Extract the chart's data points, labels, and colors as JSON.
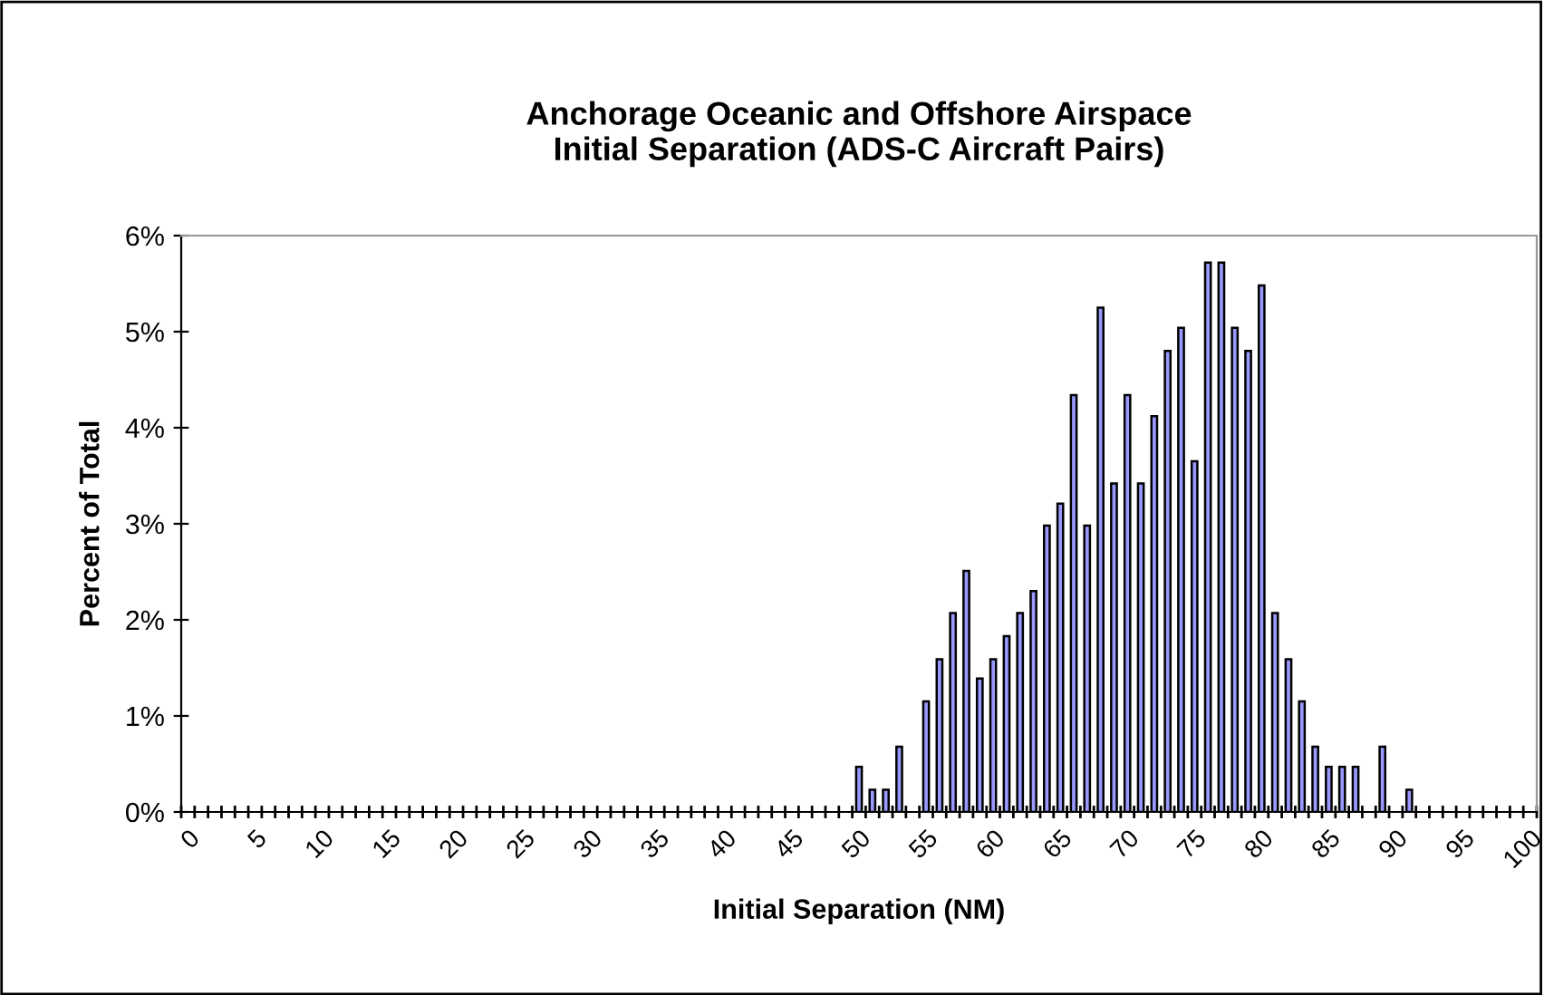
{
  "chart_data": {
    "type": "bar",
    "title": "Anchorage Oceanic and Offshore Airspace\nInitial Separation (ADS-C Aircraft Pairs)",
    "xlabel": "Initial Separation (NM)",
    "ylabel": "Percent of Total",
    "categories": [
      "0",
      null,
      null,
      null,
      null,
      "5",
      null,
      null,
      null,
      null,
      "10",
      null,
      null,
      null,
      null,
      "15",
      null,
      null,
      null,
      null,
      "20",
      null,
      null,
      null,
      null,
      "25",
      null,
      null,
      null,
      null,
      "30",
      null,
      null,
      null,
      null,
      "35",
      null,
      null,
      null,
      null,
      "40",
      null,
      null,
      null,
      null,
      "45",
      null,
      null,
      null,
      null,
      "50",
      null,
      null,
      null,
      null,
      "55",
      null,
      null,
      null,
      null,
      "60",
      null,
      null,
      null,
      null,
      "65",
      null,
      null,
      null,
      null,
      "70",
      null,
      null,
      null,
      null,
      "75",
      null,
      null,
      null,
      null,
      "80",
      null,
      null,
      null,
      null,
      "85",
      null,
      null,
      null,
      null,
      "90",
      null,
      null,
      null,
      null,
      "95",
      null,
      null,
      null,
      null,
      "100"
    ],
    "values": [
      null,
      null,
      null,
      null,
      null,
      null,
      null,
      null,
      null,
      null,
      null,
      null,
      null,
      null,
      null,
      null,
      null,
      null,
      null,
      null,
      null,
      null,
      null,
      null,
      null,
      null,
      null,
      null,
      null,
      null,
      null,
      null,
      null,
      null,
      null,
      null,
      null,
      null,
      null,
      null,
      null,
      null,
      null,
      null,
      null,
      null,
      null,
      null,
      null,
      null,
      0.47,
      0.23,
      0.23,
      0.68,
      null,
      1.15,
      1.59,
      2.07,
      2.51,
      1.39,
      1.59,
      1.83,
      2.07,
      2.3,
      2.98,
      3.21,
      4.34,
      2.98,
      5.25,
      3.42,
      4.34,
      3.42,
      4.12,
      4.8,
      5.04,
      3.65,
      5.72,
      5.72,
      5.04,
      4.8,
      5.48,
      2.07,
      1.59,
      1.15,
      0.68,
      0.47,
      0.47,
      0.47,
      null,
      0.68,
      null,
      0.23,
      null,
      null,
      null,
      null,
      null,
      null,
      null,
      null,
      null
    ],
    "color": "#9999ff",
    "ylim": [
      0,
      6
    ],
    "yticks": [
      {
        "value": 0,
        "label": "0%"
      },
      {
        "value": 1,
        "label": "1%"
      },
      {
        "value": 2,
        "label": "2%"
      },
      {
        "value": 3,
        "label": "3%"
      },
      {
        "value": 4,
        "label": "4%"
      },
      {
        "value": 5,
        "label": "5%"
      },
      {
        "value": 6,
        "label": "6%"
      }
    ],
    "grid": false,
    "legend": false
  }
}
